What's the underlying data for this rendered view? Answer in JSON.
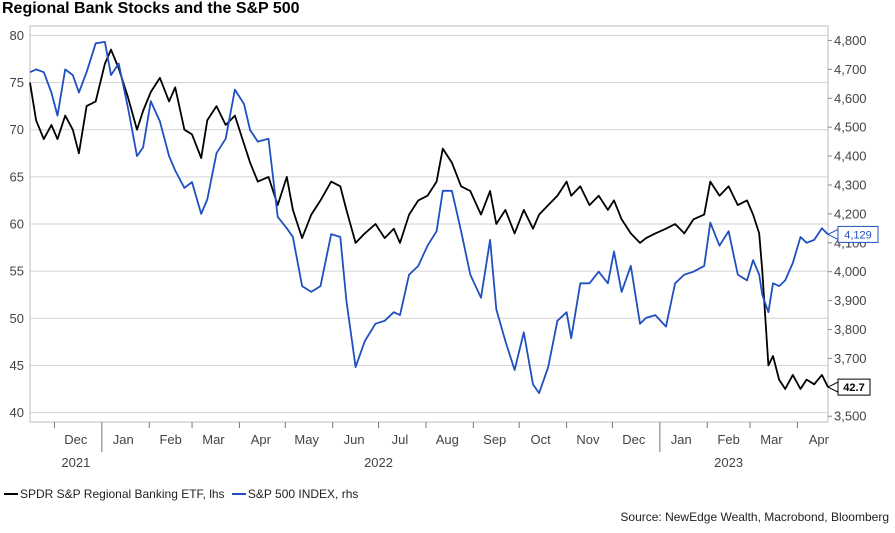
{
  "title": "Regional Bank Stocks and the S&P 500",
  "source": "Source: NewEdge Wealth, Macrobond, Bloomberg",
  "chart_data": {
    "type": "line",
    "title": "Regional Bank Stocks and the S&P 500",
    "x_axis": {
      "months": [
        "Dec",
        "Jan",
        "Feb",
        "Mar",
        "Apr",
        "May",
        "Jun",
        "Jul",
        "Aug",
        "Sep",
        "Oct",
        "Nov",
        "Dec",
        "Jan",
        "Feb",
        "Mar",
        "Apr"
      ],
      "years": [
        "2021",
        "2022",
        "2023"
      ],
      "range": [
        "2021-11-15",
        "2023-04-21"
      ]
    },
    "y_left": {
      "range": [
        39,
        81
      ],
      "ticks": [
        "40",
        "45",
        "50",
        "55",
        "60",
        "65",
        "70",
        "75",
        "80"
      ]
    },
    "y_right": {
      "range": [
        3480,
        4850
      ],
      "ticks": [
        "3,500",
        "3,600",
        "3,700",
        "3,800",
        "3,900",
        "4,000",
        "4,100",
        "4,200",
        "4,300",
        "4,400",
        "4,500",
        "4,600",
        "4,700",
        "4,800"
      ]
    },
    "grid": true,
    "legend_position": "bottom-left",
    "series": [
      {
        "name": "SPDR S&P Regional Banking ETF, lhs",
        "axis": "left",
        "color": "#000000",
        "end_label": "42.7",
        "points": [
          [
            "2021-11-15",
            75
          ],
          [
            "2021-11-19",
            71
          ],
          [
            "2021-11-24",
            69
          ],
          [
            "2021-11-29",
            70.5
          ],
          [
            "2021-12-03",
            69
          ],
          [
            "2021-12-08",
            71.5
          ],
          [
            "2021-12-13",
            70
          ],
          [
            "2021-12-17",
            67.5
          ],
          [
            "2021-12-22",
            72.5
          ],
          [
            "2021-12-28",
            73
          ],
          [
            "2022-01-03",
            77
          ],
          [
            "2022-01-07",
            78.5
          ],
          [
            "2022-01-12",
            76.5
          ],
          [
            "2022-01-18",
            73.5
          ],
          [
            "2022-01-24",
            70
          ],
          [
            "2022-01-28",
            72
          ],
          [
            "2022-02-02",
            74
          ],
          [
            "2022-02-08",
            75.5
          ],
          [
            "2022-02-14",
            73
          ],
          [
            "2022-02-18",
            74.5
          ],
          [
            "2022-02-24",
            70
          ],
          [
            "2022-03-01",
            69.5
          ],
          [
            "2022-03-07",
            67
          ],
          [
            "2022-03-11",
            71
          ],
          [
            "2022-03-17",
            72.5
          ],
          [
            "2022-03-23",
            70.5
          ],
          [
            "2022-03-29",
            71.5
          ],
          [
            "2022-04-04",
            68.5
          ],
          [
            "2022-04-08",
            66.5
          ],
          [
            "2022-04-13",
            64.5
          ],
          [
            "2022-04-20",
            65
          ],
          [
            "2022-04-26",
            62
          ],
          [
            "2022-05-02",
            65
          ],
          [
            "2022-05-06",
            61.5
          ],
          [
            "2022-05-12",
            58.5
          ],
          [
            "2022-05-18",
            61
          ],
          [
            "2022-05-24",
            62.5
          ],
          [
            "2022-05-31",
            64.5
          ],
          [
            "2022-06-06",
            64
          ],
          [
            "2022-06-10",
            61.5
          ],
          [
            "2022-06-16",
            58
          ],
          [
            "2022-06-22",
            59
          ],
          [
            "2022-06-29",
            60
          ],
          [
            "2022-07-05",
            58.5
          ],
          [
            "2022-07-11",
            59.5
          ],
          [
            "2022-07-15",
            58
          ],
          [
            "2022-07-21",
            61
          ],
          [
            "2022-07-27",
            62.5
          ],
          [
            "2022-08-02",
            63
          ],
          [
            "2022-08-08",
            64.5
          ],
          [
            "2022-08-12",
            68
          ],
          [
            "2022-08-18",
            66.5
          ],
          [
            "2022-08-24",
            64
          ],
          [
            "2022-08-30",
            63.5
          ],
          [
            "2022-09-06",
            61
          ],
          [
            "2022-09-12",
            63.5
          ],
          [
            "2022-09-16",
            60
          ],
          [
            "2022-09-22",
            61.5
          ],
          [
            "2022-09-28",
            59
          ],
          [
            "2022-10-04",
            61.5
          ],
          [
            "2022-10-10",
            59.5
          ],
          [
            "2022-10-14",
            61
          ],
          [
            "2022-10-20",
            62
          ],
          [
            "2022-10-26",
            63
          ],
          [
            "2022-11-01",
            64.5
          ],
          [
            "2022-11-04",
            63
          ],
          [
            "2022-11-10",
            64
          ],
          [
            "2022-11-16",
            62
          ],
          [
            "2022-11-22",
            63
          ],
          [
            "2022-11-28",
            61.5
          ],
          [
            "2022-12-02",
            62.5
          ],
          [
            "2022-12-07",
            60.5
          ],
          [
            "2022-12-13",
            59
          ],
          [
            "2022-12-19",
            58
          ],
          [
            "2022-12-23",
            58.5
          ],
          [
            "2022-12-29",
            59
          ],
          [
            "2023-01-05",
            59.5
          ],
          [
            "2023-01-11",
            60
          ],
          [
            "2023-01-17",
            59
          ],
          [
            "2023-01-23",
            60.5
          ],
          [
            "2023-01-30",
            61
          ],
          [
            "2023-02-03",
            64.5
          ],
          [
            "2023-02-09",
            63
          ],
          [
            "2023-02-15",
            64
          ],
          [
            "2023-02-21",
            62
          ],
          [
            "2023-02-27",
            62.5
          ],
          [
            "2023-03-03",
            61
          ],
          [
            "2023-03-07",
            59
          ],
          [
            "2023-03-09",
            55
          ],
          [
            "2023-03-13",
            45
          ],
          [
            "2023-03-16",
            46
          ],
          [
            "2023-03-20",
            43.5
          ],
          [
            "2023-03-24",
            42.5
          ],
          [
            "2023-03-29",
            44
          ],
          [
            "2023-04-03",
            42.5
          ],
          [
            "2023-04-07",
            43.5
          ],
          [
            "2023-04-12",
            43
          ],
          [
            "2023-04-17",
            44
          ],
          [
            "2023-04-21",
            42.7
          ]
        ]
      },
      {
        "name": "S&P 500 INDEX, rhs",
        "axis": "right",
        "color": "#2050c0",
        "end_label": "4,129",
        "points": [
          [
            "2021-11-15",
            4690
          ],
          [
            "2021-11-19",
            4700
          ],
          [
            "2021-11-24",
            4690
          ],
          [
            "2021-11-29",
            4620
          ],
          [
            "2021-12-03",
            4540
          ],
          [
            "2021-12-08",
            4700
          ],
          [
            "2021-12-13",
            4680
          ],
          [
            "2021-12-17",
            4620
          ],
          [
            "2021-12-22",
            4690
          ],
          [
            "2021-12-28",
            4790
          ],
          [
            "2022-01-03",
            4795
          ],
          [
            "2022-01-07",
            4680
          ],
          [
            "2022-01-12",
            4720
          ],
          [
            "2022-01-18",
            4570
          ],
          [
            "2022-01-24",
            4400
          ],
          [
            "2022-01-28",
            4430
          ],
          [
            "2022-02-02",
            4590
          ],
          [
            "2022-02-08",
            4520
          ],
          [
            "2022-02-14",
            4400
          ],
          [
            "2022-02-18",
            4350
          ],
          [
            "2022-02-24",
            4290
          ],
          [
            "2022-03-01",
            4310
          ],
          [
            "2022-03-07",
            4200
          ],
          [
            "2022-03-11",
            4250
          ],
          [
            "2022-03-17",
            4410
          ],
          [
            "2022-03-23",
            4460
          ],
          [
            "2022-03-29",
            4630
          ],
          [
            "2022-04-04",
            4580
          ],
          [
            "2022-04-08",
            4490
          ],
          [
            "2022-04-13",
            4450
          ],
          [
            "2022-04-20",
            4460
          ],
          [
            "2022-04-26",
            4190
          ],
          [
            "2022-05-02",
            4150
          ],
          [
            "2022-05-06",
            4120
          ],
          [
            "2022-05-12",
            3950
          ],
          [
            "2022-05-18",
            3930
          ],
          [
            "2022-05-24",
            3950
          ],
          [
            "2022-05-31",
            4130
          ],
          [
            "2022-06-06",
            4120
          ],
          [
            "2022-06-10",
            3900
          ],
          [
            "2022-06-16",
            3670
          ],
          [
            "2022-06-22",
            3760
          ],
          [
            "2022-06-29",
            3820
          ],
          [
            "2022-07-05",
            3830
          ],
          [
            "2022-07-11",
            3860
          ],
          [
            "2022-07-15",
            3850
          ],
          [
            "2022-07-21",
            3990
          ],
          [
            "2022-07-27",
            4020
          ],
          [
            "2022-08-02",
            4090
          ],
          [
            "2022-08-08",
            4140
          ],
          [
            "2022-08-12",
            4280
          ],
          [
            "2022-08-18",
            4280
          ],
          [
            "2022-08-24",
            4140
          ],
          [
            "2022-08-30",
            3990
          ],
          [
            "2022-09-06",
            3910
          ],
          [
            "2022-09-12",
            4110
          ],
          [
            "2022-09-16",
            3870
          ],
          [
            "2022-09-22",
            3760
          ],
          [
            "2022-09-28",
            3660
          ],
          [
            "2022-10-04",
            3790
          ],
          [
            "2022-10-10",
            3610
          ],
          [
            "2022-10-14",
            3580
          ],
          [
            "2022-10-20",
            3670
          ],
          [
            "2022-10-26",
            3830
          ],
          [
            "2022-11-01",
            3860
          ],
          [
            "2022-11-04",
            3770
          ],
          [
            "2022-11-10",
            3960
          ],
          [
            "2022-11-16",
            3960
          ],
          [
            "2022-11-22",
            4000
          ],
          [
            "2022-11-28",
            3960
          ],
          [
            "2022-12-02",
            4070
          ],
          [
            "2022-12-07",
            3930
          ],
          [
            "2022-12-13",
            4020
          ],
          [
            "2022-12-19",
            3820
          ],
          [
            "2022-12-23",
            3840
          ],
          [
            "2022-12-29",
            3850
          ],
          [
            "2023-01-05",
            3810
          ],
          [
            "2023-01-11",
            3960
          ],
          [
            "2023-01-17",
            3990
          ],
          [
            "2023-01-23",
            4000
          ],
          [
            "2023-01-30",
            4020
          ],
          [
            "2023-02-03",
            4170
          ],
          [
            "2023-02-09",
            4090
          ],
          [
            "2023-02-15",
            4140
          ],
          [
            "2023-02-21",
            3990
          ],
          [
            "2023-02-27",
            3970
          ],
          [
            "2023-03-03",
            4040
          ],
          [
            "2023-03-07",
            3990
          ],
          [
            "2023-03-09",
            3920
          ],
          [
            "2023-03-13",
            3860
          ],
          [
            "2023-03-16",
            3960
          ],
          [
            "2023-03-20",
            3950
          ],
          [
            "2023-03-24",
            3970
          ],
          [
            "2023-03-29",
            4030
          ],
          [
            "2023-04-03",
            4120
          ],
          [
            "2023-04-07",
            4100
          ],
          [
            "2023-04-12",
            4110
          ],
          [
            "2023-04-17",
            4150
          ],
          [
            "2023-04-21",
            4129
          ]
        ]
      }
    ]
  }
}
